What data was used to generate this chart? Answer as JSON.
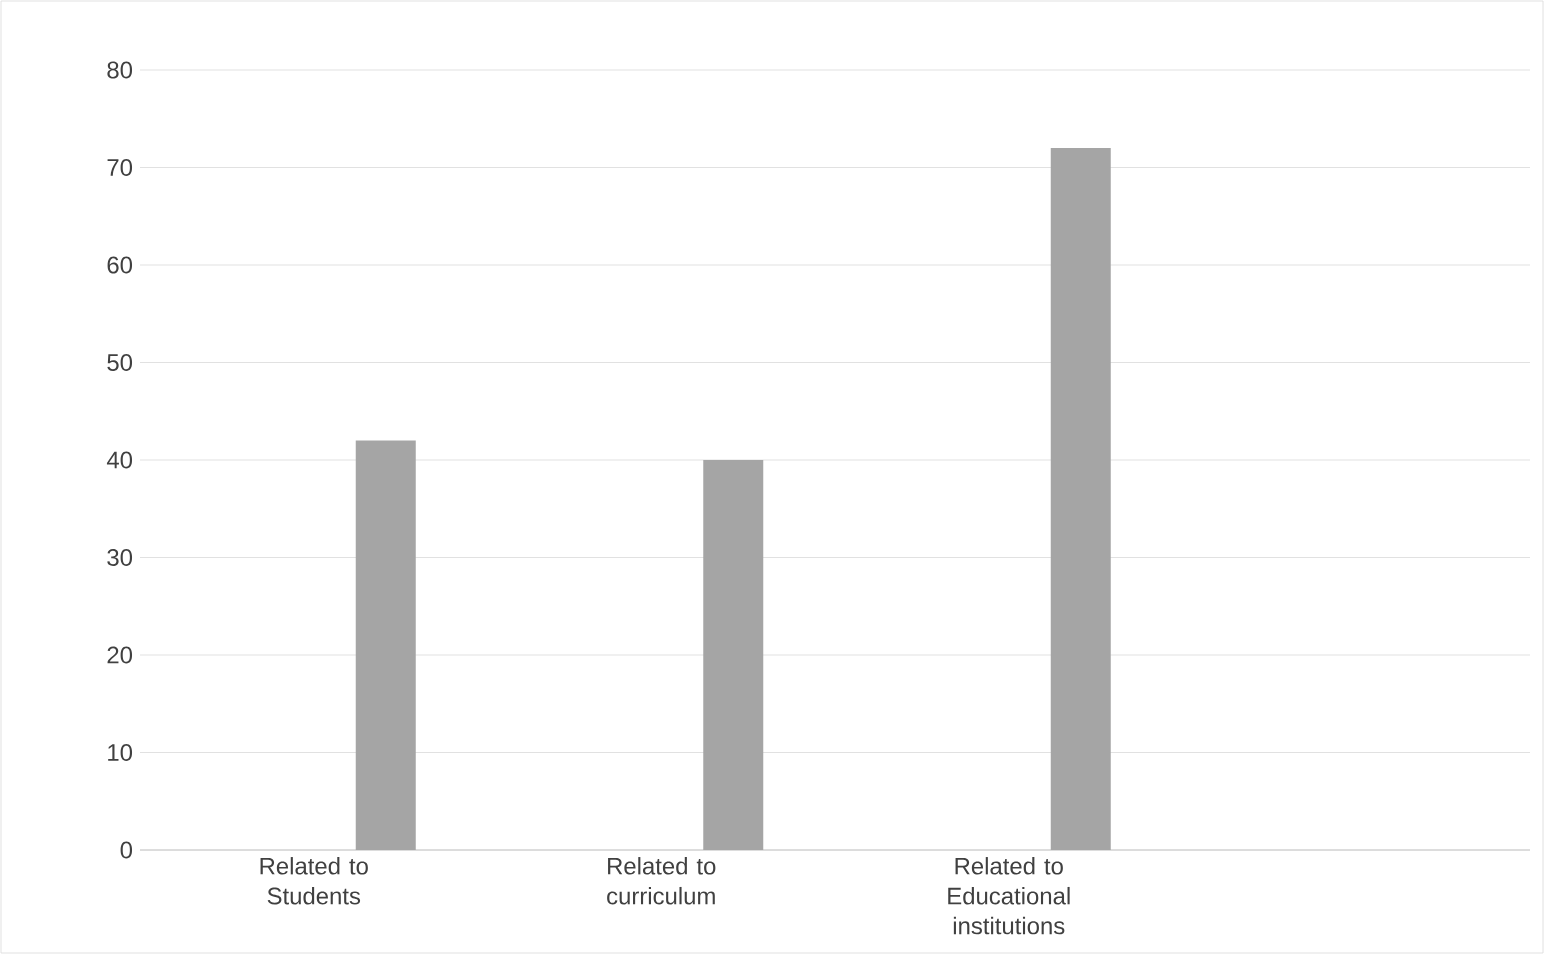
{
  "chart_data": {
    "type": "bar",
    "categories": [
      "Related to Students",
      "Related to curriculum",
      "Related to Educational institutions",
      null
    ],
    "values": [
      42,
      40,
      72,
      null
    ],
    "color": "#a5a5a5",
    "ylim": [
      0,
      80
    ],
    "yticks": [
      0,
      10,
      20,
      30,
      40,
      50,
      60,
      70,
      80
    ],
    "grid": "y"
  }
}
